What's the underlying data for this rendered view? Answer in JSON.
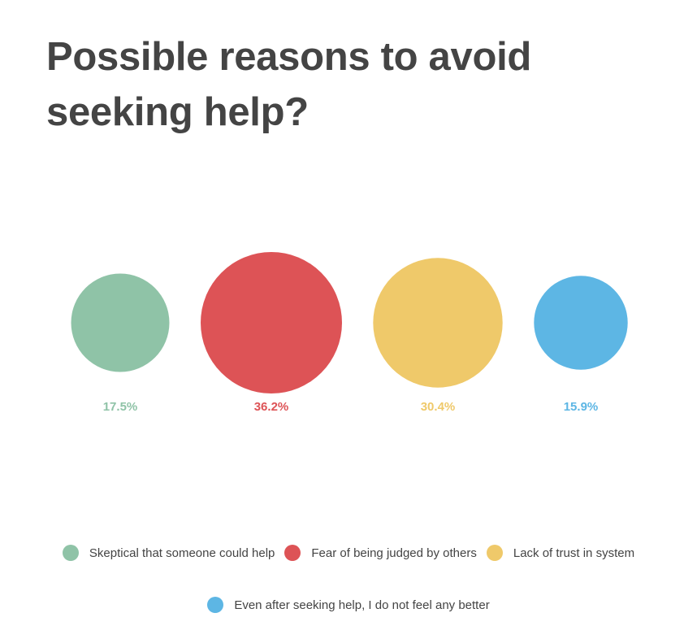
{
  "title": "Possible reasons to avoid seeking help?",
  "chart_data": {
    "type": "bubble",
    "title": "Possible reasons to avoid seeking help?",
    "unit": "%",
    "series": [
      {
        "name": "Skeptical that someone could help",
        "value": 17.5,
        "label": "17.5%",
        "color": "#8fc3a7"
      },
      {
        "name": "Fear of being judged by others",
        "value": 36.2,
        "label": "36.2%",
        "color": "#dd5356"
      },
      {
        "name": "Lack of trust in system",
        "value": 30.4,
        "label": "30.4%",
        "color": "#efc96a"
      },
      {
        "name": "Even after seeking help, I do not feel any better",
        "value": 15.9,
        "label": "15.9%",
        "color": "#5db6e4"
      }
    ],
    "legend_position": "bottom",
    "grid": false
  }
}
